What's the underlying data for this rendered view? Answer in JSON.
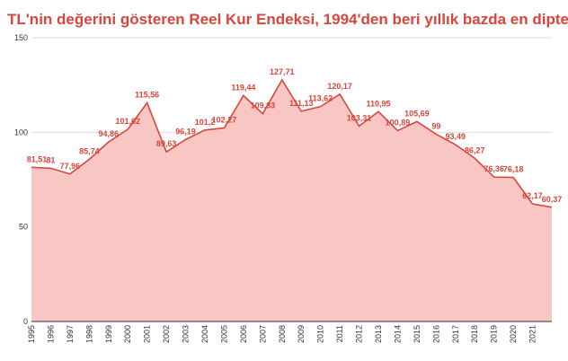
{
  "chart_data": {
    "type": "area",
    "title": "TL'nin değerini gösteren Reel Kur Endeksi, 1994'den beri yıllık bazda en dipte",
    "categories": [
      "1995",
      "1996",
      "1997",
      "1998",
      "1999",
      "2000",
      "2001",
      "2002",
      "2003",
      "2004",
      "2005",
      "2006",
      "2007",
      "2008",
      "2009",
      "2010",
      "2011",
      "2012",
      "2013",
      "2014",
      "2015",
      "2016",
      "2017",
      "2018",
      "2019",
      "2020",
      "2021",
      null
    ],
    "values": [
      81.51,
      81,
      77.96,
      85.74,
      94.86,
      101.62,
      115.56,
      89.63,
      96.19,
      101.2,
      102.27,
      119.44,
      109.83,
      127.71,
      111.13,
      113.62,
      120.17,
      103.31,
      110.95,
      100.89,
      105.69,
      99,
      93.49,
      86.27,
      76.36,
      76.18,
      62.17,
      60.37
    ],
    "value_labels": [
      "81,51",
      "81",
      "77,96",
      "85,74",
      "94,86",
      "101,62",
      "115,56",
      "89,63",
      "96,19",
      "101,2",
      "102,27",
      "119,44",
      "109,83",
      "127,71",
      "111,13",
      "113,62",
      "120,17",
      "103,31",
      "110,95",
      "100,89",
      "105,69",
      "99",
      "93,49",
      "86,27",
      "76,36",
      "76,18",
      "62,17",
      "60,37"
    ],
    "color": "#d9453b",
    "fill": "#f8c7c3",
    "ylim": [
      0,
      150
    ],
    "yticks": [
      0,
      50,
      100,
      150
    ],
    "grid": true
  }
}
